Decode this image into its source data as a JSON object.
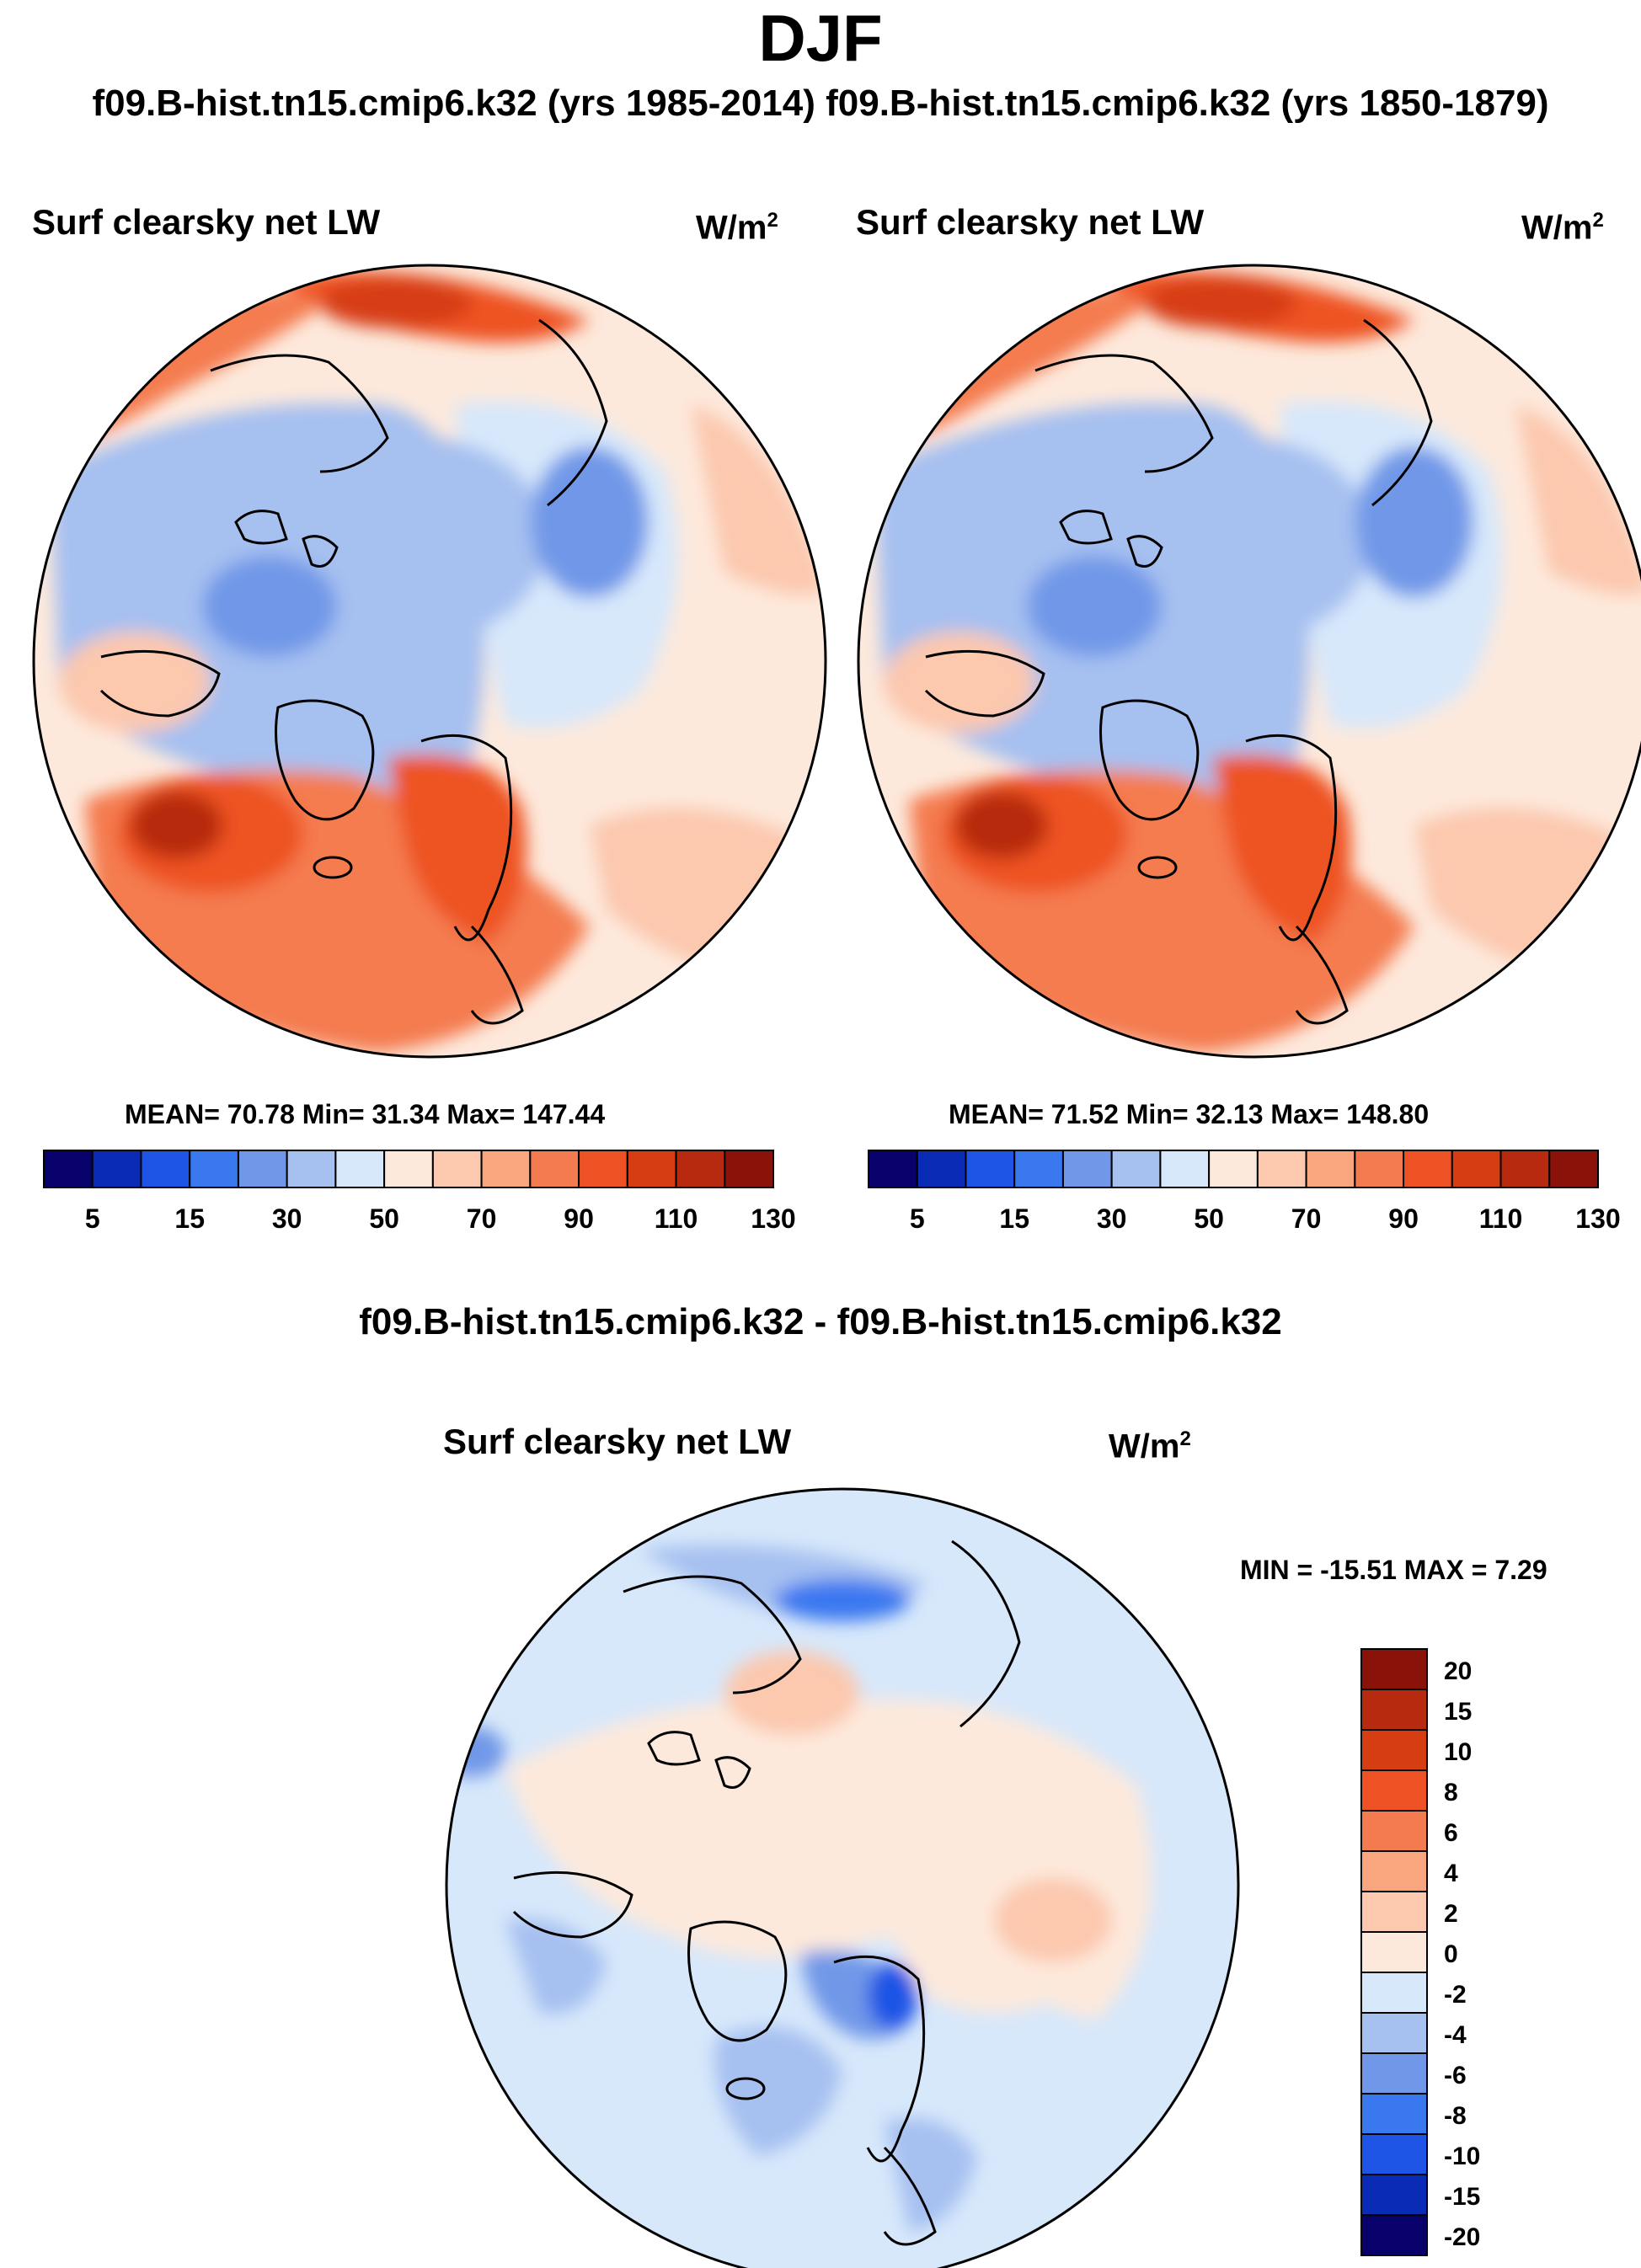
{
  "season": "DJF",
  "subtitle": "f09.B-hist.tn15.cmip6.k32 (yrs 1985-2014) f09.B-hist.tn15.cmip6.k32 (yrs 1850-1879)",
  "panels": [
    {
      "title": "Surf clearsky net LW",
      "units_base": "W/m",
      "units_exp": "2",
      "stats_text": "MEAN=  70.78  Min=  31.34  Max= 147.44",
      "mean": 70.78,
      "min": 31.34,
      "max": 147.44
    },
    {
      "title": "Surf clearsky net LW",
      "units_base": "W/m",
      "units_exp": "2",
      "stats_text": "MEAN=  71.52  Min=  32.13  Max= 148.80",
      "mean": 71.52,
      "min": 32.13,
      "max": 148.8
    }
  ],
  "diff_title": "f09.B-hist.tn15.cmip6.k32 - f09.B-hist.tn15.cmip6.k32",
  "diff_panel": {
    "title": "Surf clearsky net LW",
    "units_base": "W/m",
    "units_exp": "2",
    "stats_text": "MIN = -15.51 MAX =   7.29",
    "min": -15.51,
    "max": 7.29
  },
  "colorbar_main": {
    "colors": [
      "#08006b",
      "#0a2bb5",
      "#1e55e6",
      "#3a78f0",
      "#7198e8",
      "#a6c0f0",
      "#d7e8fb",
      "#fde9dc",
      "#fcc8ae",
      "#f9a67e",
      "#f47b4f",
      "#ee5224",
      "#d73d12",
      "#b82a10",
      "#8a1208"
    ],
    "labels": [
      "5",
      "15",
      "30",
      "50",
      "70",
      "90",
      "110",
      "130"
    ]
  },
  "colorbar_diff": {
    "colors": [
      "#08006b",
      "#0a2bb5",
      "#1e55e6",
      "#3a78f0",
      "#7198e8",
      "#a6c0f0",
      "#d7e8fb",
      "#fde9dc",
      "#fcc8ae",
      "#f9a67e",
      "#f47b4f",
      "#ee5224",
      "#d73d12",
      "#b82a10",
      "#8a1208"
    ],
    "labels": [
      "20",
      "15",
      "10",
      "8",
      "6",
      "4",
      "2",
      "0",
      "-2",
      "-4",
      "-6",
      "-8",
      "-10",
      "-15",
      "-20"
    ]
  }
}
